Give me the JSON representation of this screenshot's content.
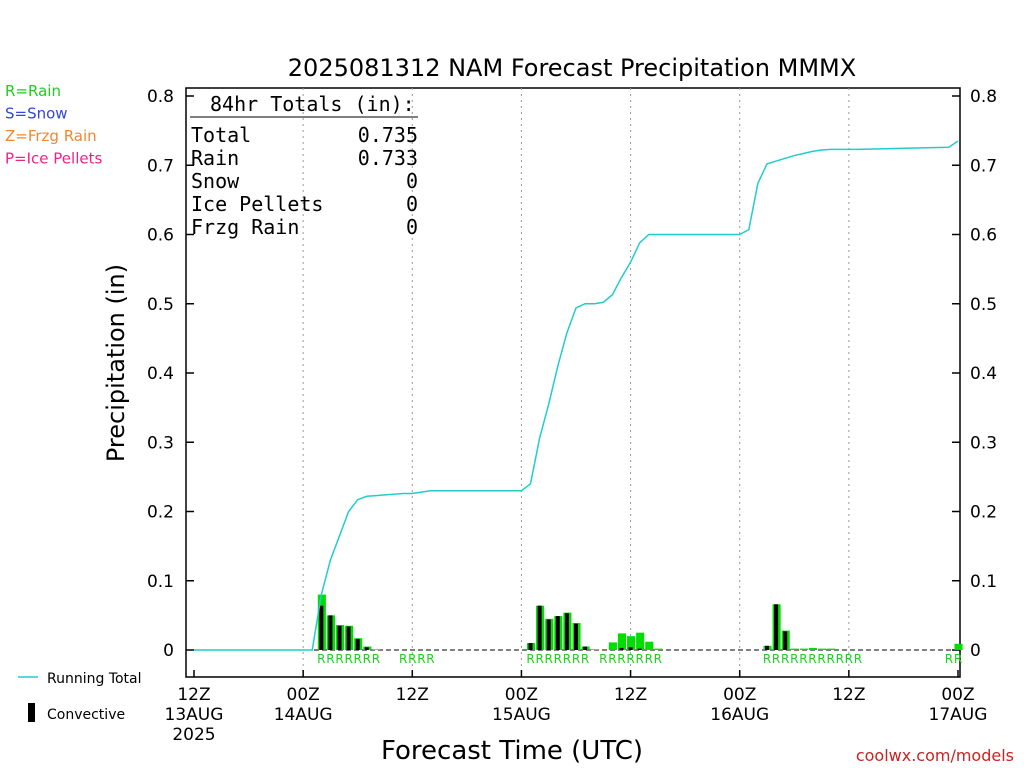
{
  "chart_data": {
    "type": "bar",
    "title": "2025081312 NAM Forecast Precipitation MMMX",
    "xlabel": "Forecast Time (UTC)",
    "ylabel": "Precipitation (in)",
    "watermark": "coolwx.com/models",
    "ylim": [
      0,
      0.8
    ],
    "xlim": [
      0,
      84
    ],
    "y_ticks": [
      "0",
      "0.1",
      "0.2",
      "0.3",
      "0.4",
      "0.5",
      "0.6",
      "0.7",
      "0.8"
    ],
    "x_ticks": [
      {
        "x": 0,
        "line1": "12Z",
        "line2": "13AUG",
        "line3": "2025"
      },
      {
        "x": 12,
        "line1": "00Z",
        "line2": "14AUG",
        "line3": ""
      },
      {
        "x": 24,
        "line1": "12Z",
        "line2": "",
        "line3": ""
      },
      {
        "x": 36,
        "line1": "00Z",
        "line2": "15AUG",
        "line3": ""
      },
      {
        "x": 48,
        "line1": "12Z",
        "line2": "",
        "line3": ""
      },
      {
        "x": 60,
        "line1": "00Z",
        "line2": "16AUG",
        "line3": ""
      },
      {
        "x": 72,
        "line1": "12Z",
        "line2": "",
        "line3": ""
      },
      {
        "x": 84,
        "line1": "00Z",
        "line2": "17AUG",
        "line3": ""
      }
    ],
    "grid": "vertical-dotted",
    "type_key": [
      {
        "label": "R=Rain",
        "color": "#22cc22"
      },
      {
        "label": "S=Snow",
        "color": "#3344dd"
      },
      {
        "label": "Z=Frzg Rain",
        "color": "#ee8833"
      },
      {
        "label": "P=Ice Pellets",
        "color": "#ee2288"
      }
    ],
    "legend": [
      {
        "label": "Running Total",
        "color": "#22cccc",
        "kind": "line"
      },
      {
        "label": "Convective",
        "color": "#000000",
        "kind": "bar"
      }
    ],
    "totals": {
      "heading": "84hr Totals (in):",
      "rows": [
        {
          "label": "Total",
          "value": "0.735"
        },
        {
          "label": "Rain",
          "value": "0.733"
        },
        {
          "label": "Snow",
          "value": "0"
        },
        {
          "label": "Ice Pellets",
          "value": "0"
        },
        {
          "label": "Frzg Rain",
          "value": "0"
        }
      ]
    },
    "series": [
      {
        "name": "Running Total",
        "x": [
          0,
          13,
          14,
          15,
          16,
          17,
          18,
          19,
          20,
          21,
          22,
          23,
          24,
          25,
          26,
          27,
          36,
          37,
          38,
          39,
          40,
          41,
          42,
          43,
          44,
          45,
          46,
          47,
          48,
          49,
          50,
          51,
          60,
          61,
          62,
          63,
          64,
          65,
          66,
          67,
          68,
          69,
          70,
          71,
          72,
          73,
          83,
          84
        ],
        "values": [
          0,
          0,
          0.08,
          0.13,
          0.165,
          0.2,
          0.217,
          0.222,
          0.223,
          0.224,
          0.225,
          0.226,
          0.226,
          0.228,
          0.23,
          0.23,
          0.23,
          0.24,
          0.306,
          0.355,
          0.41,
          0.458,
          0.494,
          0.5,
          0.5,
          0.502,
          0.513,
          0.538,
          0.56,
          0.588,
          0.6,
          0.6,
          0.6,
          0.607,
          0.674,
          0.702,
          0.706,
          0.71,
          0.714,
          0.717,
          0.72,
          0.722,
          0.723,
          0.723,
          0.723,
          0.723,
          0.726,
          0.735
        ]
      }
    ],
    "hourly": {
      "x": [
        14,
        15,
        16,
        17,
        18,
        19,
        20,
        37,
        38,
        39,
        40,
        41,
        42,
        43,
        44,
        46,
        47,
        48,
        49,
        50,
        51,
        63,
        64,
        65,
        66,
        67,
        68,
        69,
        70,
        84
      ],
      "total": [
        0.08,
        0.05,
        0.036,
        0.035,
        0.017,
        0.005,
        0.001,
        0.01,
        0.064,
        0.045,
        0.049,
        0.054,
        0.039,
        0.005,
        0.001,
        0.011,
        0.024,
        0.02,
        0.025,
        0.012,
        0.002,
        0.006,
        0.066,
        0.028,
        0.002,
        0.002,
        0.003,
        0.002,
        0.002,
        0.009
      ],
      "convective": [
        0.064,
        0.05,
        0.035,
        0.034,
        0.016,
        0.004,
        0,
        0.01,
        0.064,
        0.044,
        0.049,
        0.053,
        0.038,
        0.005,
        0,
        0,
        0.003,
        0.004,
        0.002,
        0,
        0,
        0.006,
        0.066,
        0.027,
        0,
        0,
        0,
        0,
        0,
        0
      ]
    },
    "type_labels": {
      "x": [
        14,
        15,
        16,
        17,
        18,
        19,
        20,
        23,
        24,
        25,
        26,
        37,
        38,
        39,
        40,
        41,
        42,
        43,
        45,
        46,
        47,
        48,
        49,
        50,
        51,
        63,
        64,
        65,
        66,
        67,
        68,
        69,
        70,
        71,
        72,
        73,
        83,
        84
      ],
      "chars": [
        "R",
        "R",
        "R",
        "R",
        "R",
        "R",
        "R",
        "R",
        "R",
        "R",
        "R",
        "R",
        "R",
        "R",
        "R",
        "R",
        "R",
        "R",
        "R",
        "R",
        "R",
        "R",
        "R",
        "R",
        "R",
        "R",
        "R",
        "R",
        "R",
        "R",
        "R",
        "R",
        "R",
        "R",
        "R",
        "R",
        "R",
        "R"
      ]
    }
  }
}
